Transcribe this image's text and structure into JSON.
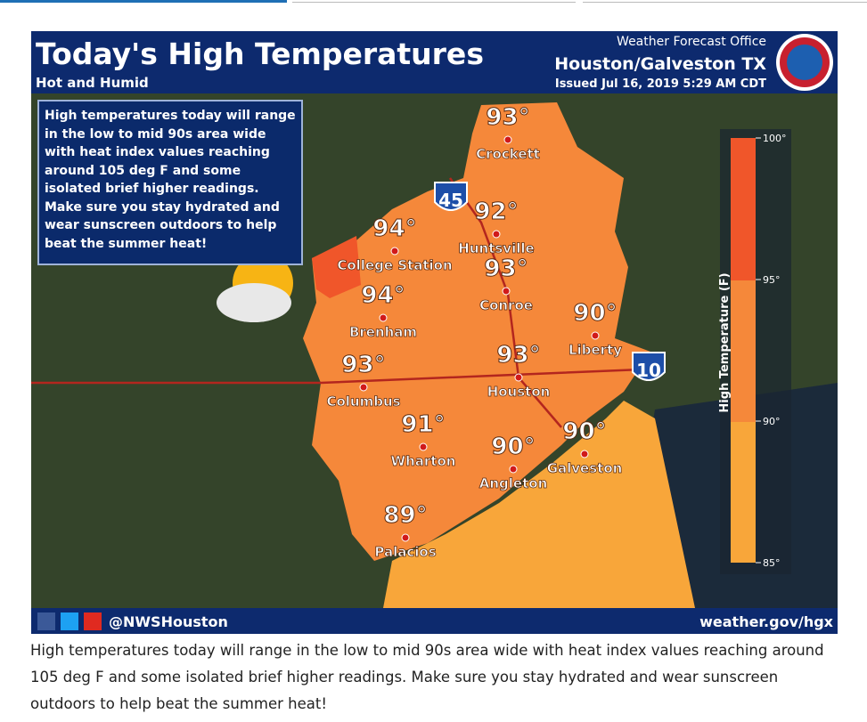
{
  "graphic": {
    "header": {
      "title": "Today's High Temperatures",
      "subtitle": "Hot and Humid",
      "office": "Weather Forecast Office",
      "location": "Houston/Galveston TX",
      "issued": "Issued Jul 16, 2019 5:29 AM CDT"
    },
    "info_box": "High temperatures today will range in the low to mid 90s area wide with heat index values reaching around 105 deg F and some isolated brief higher readings.  Make sure you stay hydrated and wear sunscreen outdoors to help beat the summer heat!",
    "cities": [
      {
        "temp": "93°",
        "name": "Crockett"
      },
      {
        "temp": "92°",
        "name": "Huntsville"
      },
      {
        "temp": "94°",
        "name": "College Station"
      },
      {
        "temp": "93°",
        "name": "Conroe"
      },
      {
        "temp": "94°",
        "name": "Brenham"
      },
      {
        "temp": "90°",
        "name": "Liberty"
      },
      {
        "temp": "93°",
        "name": "Columbus"
      },
      {
        "temp": "93°",
        "name": "Houston"
      },
      {
        "temp": "91°",
        "name": "Wharton"
      },
      {
        "temp": "90°",
        "name": "Angleton"
      },
      {
        "temp": "90°",
        "name": "Galveston"
      },
      {
        "temp": "89°",
        "name": "Palacios"
      }
    ],
    "interstates": [
      "45",
      "10"
    ],
    "legend": {
      "title": "High Temperature (F)",
      "ticks": [
        "100°",
        "95°",
        "90°",
        "85°"
      ]
    },
    "footer": {
      "handle": "@NWSHouston",
      "website": "weather.gov/hgx"
    }
  },
  "caption": "High temperatures today will range in the low to mid 90s area wide with heat index values reaching around 105 deg F and some isolated brief higher readings. Make sure you stay hydrated and wear sunscreen outdoors to help beat the summer heat!"
}
